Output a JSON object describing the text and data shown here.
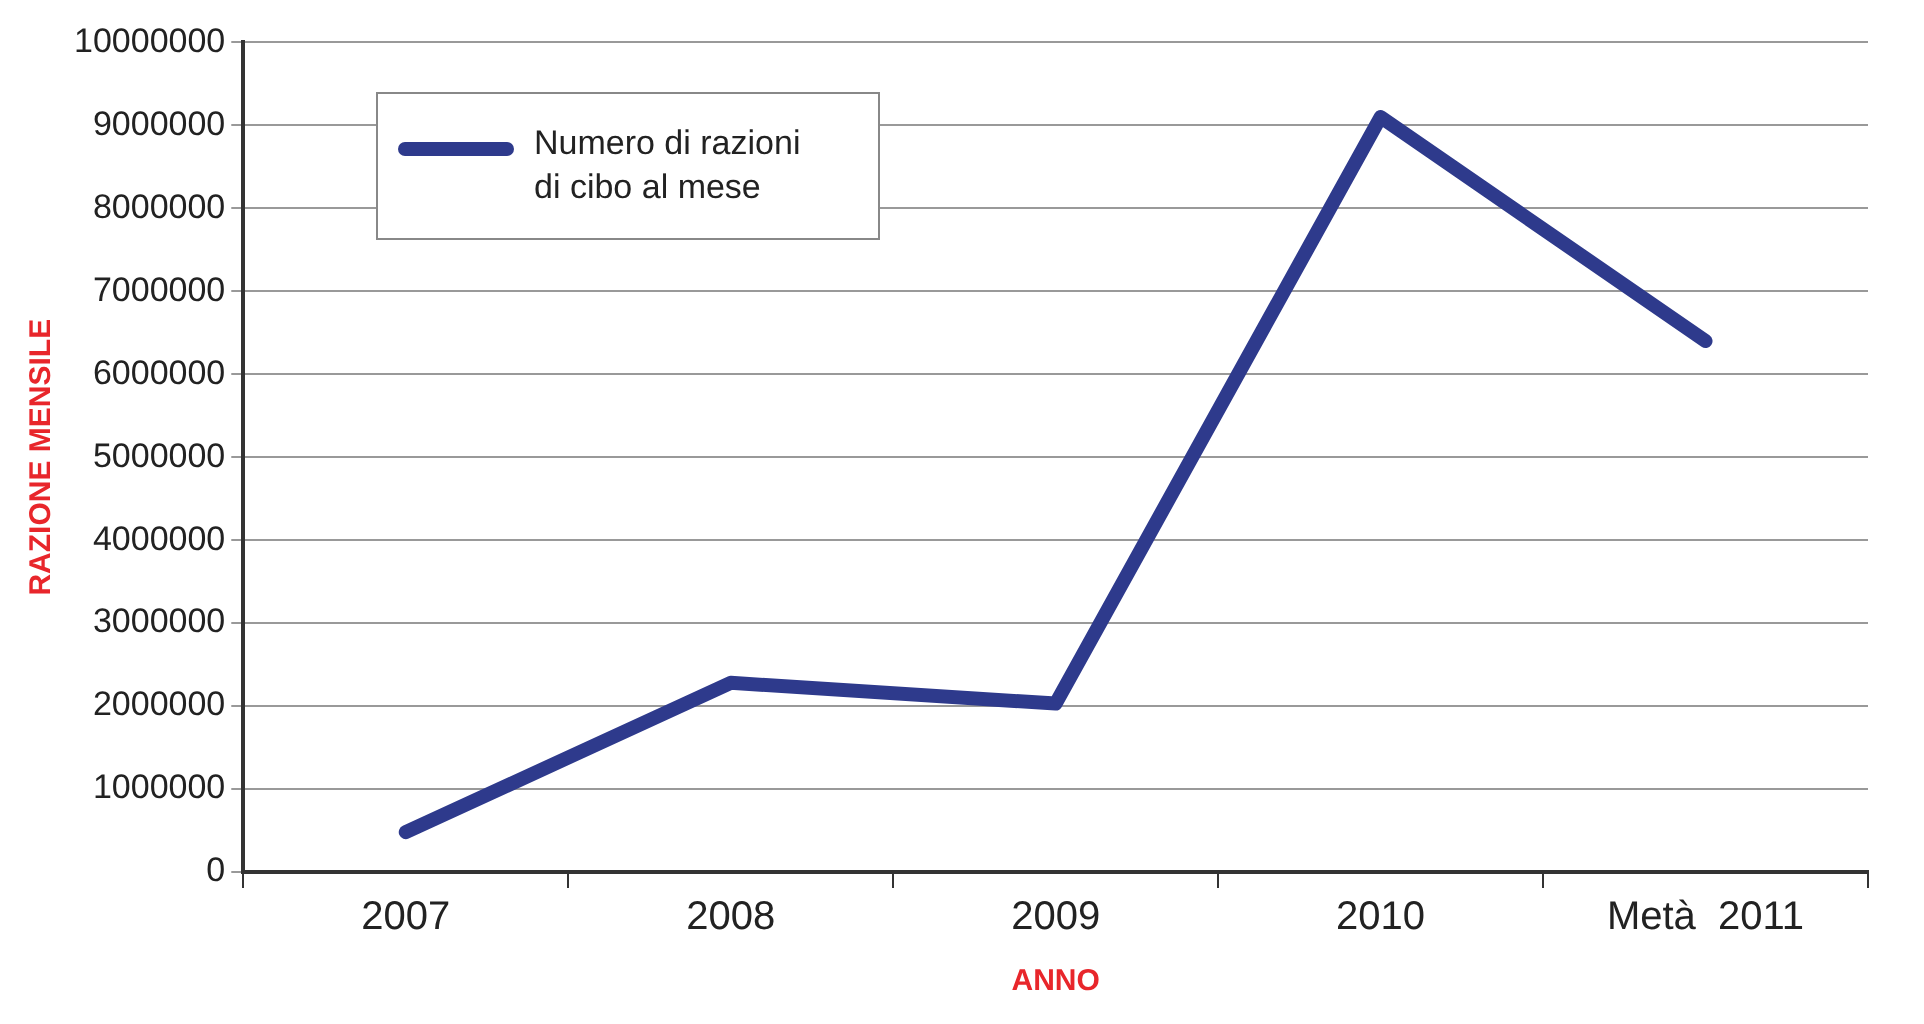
{
  "chart_data": {
    "type": "line",
    "xlabel": "ANNO",
    "ylabel": "RAZIONE MENSILE",
    "categories": [
      "2007",
      "2008",
      "2009",
      "2010",
      "Metà  2011"
    ],
    "series": [
      {
        "name": "Numero di razioni di cibo al mese",
        "color": "#2e3a8c",
        "values": [
          480000,
          2280000,
          2030000,
          9100000,
          6400000
        ]
      }
    ],
    "ylim": [
      0,
      10000000
    ],
    "yticks": [
      0,
      1000000,
      2000000,
      3000000,
      4000000,
      5000000,
      6000000,
      7000000,
      8000000,
      9000000,
      10000000
    ],
    "grid": "y",
    "legend": "top left",
    "marker": "none",
    "line_style": "solid"
  }
}
